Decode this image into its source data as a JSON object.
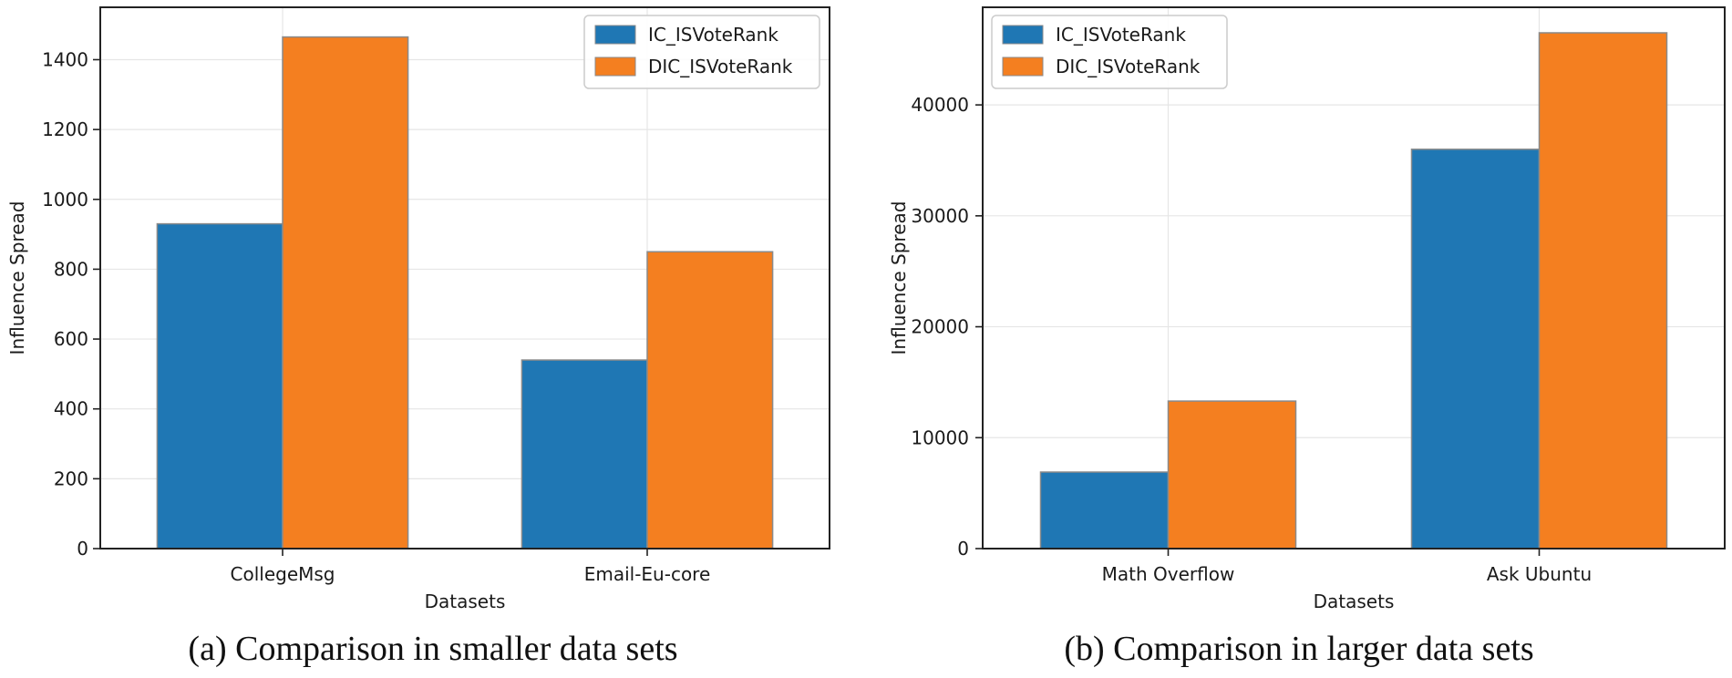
{
  "colors": {
    "ic": "#1f77b4",
    "dic": "#f47f20",
    "grid": "#e6e6e6",
    "axis": "#222222",
    "bar_edge": "#8a8a8a"
  },
  "chart_data": [
    {
      "type": "bar",
      "categories": [
        "CollegeMsg",
        "Email-Eu-core"
      ],
      "series": [
        {
          "name": "IC_ISVoteRank",
          "values": [
            930,
            540
          ]
        },
        {
          "name": "DIC_ISVoteRank",
          "values": [
            1465,
            850
          ]
        }
      ],
      "xlabel": "Datasets",
      "ylabel": "Influence Spread",
      "ylim": [
        0,
        1550
      ],
      "yticks": [
        0,
        200,
        400,
        600,
        800,
        1000,
        1200,
        1400
      ],
      "grid": true,
      "legend": "top-right",
      "caption": "(a) Comparison in smaller data sets"
    },
    {
      "type": "bar",
      "categories": [
        "Math Overflow",
        "Ask Ubuntu"
      ],
      "series": [
        {
          "name": "IC_ISVoteRank",
          "values": [
            6900,
            36000
          ]
        },
        {
          "name": "DIC_ISVoteRank",
          "values": [
            13300,
            46500
          ]
        }
      ],
      "xlabel": "Datasets",
      "ylabel": "Influence Spread",
      "ylim": [
        0,
        48800
      ],
      "yticks": [
        0,
        10000,
        20000,
        30000,
        40000
      ],
      "grid": true,
      "legend": "top-left",
      "caption": "(b) Comparison in larger data sets"
    }
  ]
}
